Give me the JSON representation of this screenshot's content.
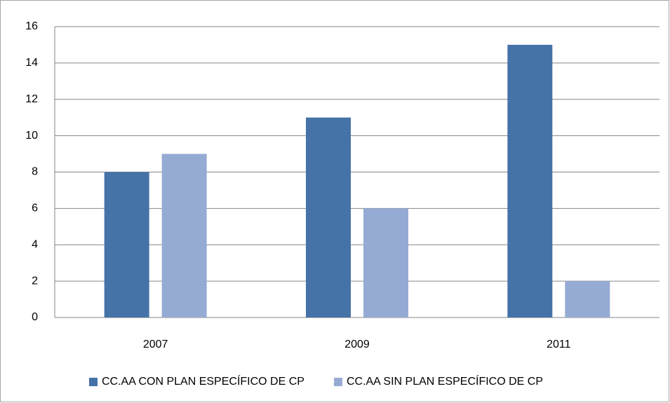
{
  "chart_data": {
    "type": "bar",
    "categories": [
      "2007",
      "2009",
      "2011"
    ],
    "series": [
      {
        "name": "CC.AA CON PLAN ESPECÍFICO DE CP",
        "color": "#4572a7",
        "values": [
          8,
          11,
          15
        ]
      },
      {
        "name": "CC.AA SIN PLAN ESPECÍFICO DE CP",
        "color": "#95abd3",
        "values": [
          9,
          6,
          2
        ]
      }
    ],
    "ylim": [
      0,
      16
    ],
    "yticks": [
      0,
      2,
      4,
      6,
      8,
      10,
      12,
      14,
      16
    ],
    "grid": true,
    "legend": "bottom"
  }
}
